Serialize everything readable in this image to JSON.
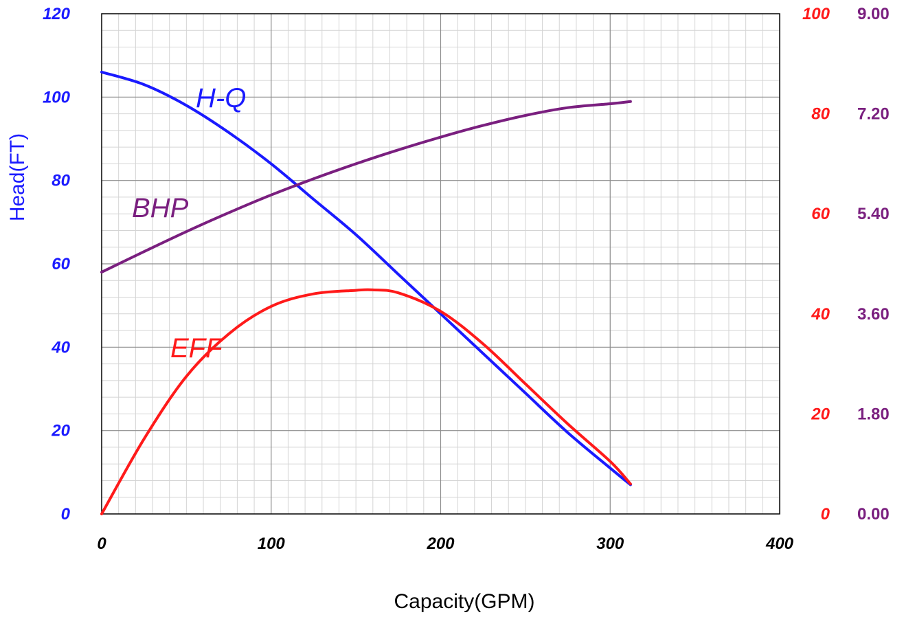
{
  "chart_data": {
    "type": "line",
    "xlabel": "Capacity(GPM)",
    "xlim": [
      0,
      400
    ],
    "x_ticks": [
      "0",
      "100",
      "200",
      "300",
      "400"
    ],
    "y_axes": {
      "head": {
        "label": "Head(FT)",
        "range": [
          0,
          120
        ],
        "ticks": [
          "0",
          "20",
          "40",
          "60",
          "80",
          "100",
          "120"
        ],
        "color": "#1a1aff"
      },
      "eff": {
        "label": "",
        "range": [
          0,
          100
        ],
        "ticks": [
          "0",
          "20",
          "40",
          "60",
          "80",
          "100"
        ],
        "color": "#ff1a1a"
      },
      "bhp": {
        "label": "",
        "range": [
          0,
          9
        ],
        "ticks": [
          "0.00",
          "1.80",
          "3.60",
          "5.40",
          "7.20",
          "9.00"
        ],
        "color": "#7a1f7f"
      }
    },
    "grid": true,
    "series": [
      {
        "name": "H-Q",
        "axis": "head",
        "color": "#1a1aff",
        "x": [
          0,
          25,
          50,
          75,
          100,
          125,
          150,
          175,
          200,
          225,
          250,
          275,
          300,
          312
        ],
        "y": [
          106,
          103,
          98,
          91.5,
          84,
          75.5,
          67,
          57.5,
          48,
          38.5,
          29,
          19.5,
          11,
          7
        ]
      },
      {
        "name": "BHP",
        "axis": "bhp",
        "color": "#7a1f7f",
        "x": [
          0,
          25,
          50,
          75,
          100,
          125,
          150,
          175,
          200,
          225,
          250,
          275,
          300,
          312
        ],
        "y": [
          4.35,
          4.72,
          5.08,
          5.42,
          5.74,
          6.03,
          6.3,
          6.55,
          6.78,
          6.99,
          7.17,
          7.31,
          7.38,
          7.42
        ]
      },
      {
        "name": "EFF",
        "axis": "eff",
        "color": "#ff1a1a",
        "x": [
          0,
          25,
          50,
          75,
          100,
          125,
          150,
          160,
          175,
          200,
          225,
          250,
          275,
          300,
          312
        ],
        "y": [
          0,
          15,
          27.5,
          36,
          41.5,
          44,
          44.7,
          44.8,
          44.2,
          40.5,
          34,
          26,
          18,
          10.5,
          6
        ]
      }
    ],
    "curve_labels": {
      "hq": "H-Q",
      "bhp": "BHP",
      "eff": "EFF"
    }
  }
}
